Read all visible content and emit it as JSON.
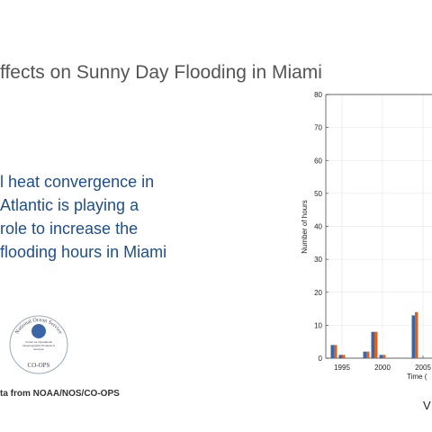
{
  "title": "ffects on Sunny Day Flooding in Miami",
  "body_lines": [
    "l heat convergence in",
    "Atlantic is playing a",
    "role to increase the",
    "flooding hours in Miami"
  ],
  "logo": {
    "ring_text": "National Ocean Service",
    "center_text": "Center for Operational Oceanographic Products & Services",
    "bottom_text": "CO-OPS"
  },
  "footer": "ta from NOAA/NOS/CO-OPS",
  "corner_text": "V",
  "chart_data": {
    "type": "bar",
    "x": [
      1994,
      1995,
      1998,
      1999,
      2000,
      2004
    ],
    "series": [
      {
        "color": "#3a66a8",
        "values": [
          4,
          1,
          2,
          8,
          1,
          13
        ]
      },
      {
        "color": "#d9631e",
        "values": [
          4,
          1,
          2,
          8,
          1,
          14
        ]
      }
    ],
    "xlim": [
      1993,
      2020
    ],
    "xticks": [
      1995,
      2000,
      2005
    ],
    "ylim": [
      0,
      80
    ],
    "yticks": [
      0,
      10,
      20,
      30,
      40,
      50,
      60,
      70,
      80
    ],
    "xlabel": "Time (",
    "ylabel": "Number of hours",
    "grid": true
  }
}
